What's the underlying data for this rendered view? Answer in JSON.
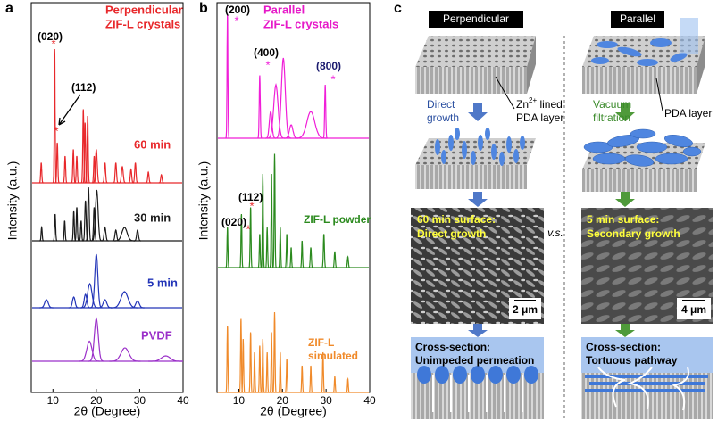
{
  "panel_labels": [
    "a",
    "b",
    "c"
  ],
  "chart_data": [
    {
      "type": "line",
      "x_label": "2θ (Degree)",
      "y_label": "Intensity (a.u.)",
      "xlim": [
        5,
        40
      ],
      "xticks": [
        10,
        20,
        30,
        40
      ],
      "title_lines": [
        "Perpendicular",
        "ZIF-L crystals"
      ],
      "title_color": "#e8282b",
      "peak_labels": [
        "(020)",
        "(112)"
      ],
      "peak_marker": "*",
      "series": [
        {
          "name": "60 min",
          "color": "#e8282b",
          "peak_x": [
            7.3,
            10.4,
            11.0,
            12.8,
            14.7,
            15.5,
            17.0,
            17.4,
            18.0,
            19.5,
            20.0,
            22,
            24.5,
            26,
            28,
            29,
            32,
            35
          ],
          "peak_heights": [
            15,
            100,
            30,
            20,
            25,
            20,
            55,
            45,
            50,
            20,
            25,
            15,
            15,
            12,
            10,
            15,
            8,
            6
          ],
          "peak_widths": [
            0.12,
            0.1,
            0.12,
            0.12,
            0.12,
            0.12,
            0.12,
            0.12,
            0.12,
            0.12,
            0.2,
            0.15,
            0.15,
            0.2,
            0.15,
            0.15,
            0.15,
            0.15
          ]
        },
        {
          "name": "30 min",
          "color": "#1a1a1a",
          "peak_x": [
            7.4,
            10.5,
            12.7,
            14.8,
            15.5,
            16.5,
            17.5,
            18.2,
            19.5,
            20.1,
            22,
            24.5,
            26.5,
            29.5
          ],
          "peak_heights": [
            10,
            20,
            15,
            22,
            25,
            15,
            30,
            40,
            25,
            38,
            10,
            8,
            10,
            8
          ],
          "peak_widths": [
            0.12,
            0.12,
            0.12,
            0.12,
            0.12,
            0.12,
            0.15,
            0.15,
            0.15,
            0.3,
            0.2,
            0.2,
            0.6,
            0.2
          ]
        },
        {
          "name": "5 min",
          "color": "#2335b8",
          "peak_x": [
            8.5,
            14.8,
            17.5,
            18.5,
            20.0,
            22,
            26.5,
            29.5
          ],
          "peak_heights": [
            6,
            8,
            10,
            18,
            40,
            6,
            12,
            5
          ],
          "peak_widths": [
            0.4,
            0.3,
            0.3,
            0.5,
            0.35,
            0.4,
            0.8,
            0.4
          ]
        },
        {
          "name": "PVDF",
          "color": "#9b30c9",
          "peak_x": [
            18.4,
            20.0,
            26.6,
            36
          ],
          "peak_heights": [
            15,
            32,
            10,
            4
          ],
          "peak_widths": [
            0.6,
            0.45,
            0.9,
            1.0
          ]
        }
      ]
    },
    {
      "type": "line",
      "x_label": "2θ (Degree)",
      "y_label": "Intensity (a.u.)",
      "xlim": [
        5,
        40
      ],
      "xticks": [
        10,
        20,
        30,
        40
      ],
      "title_lines": [
        "Parallel",
        "ZIF-L crystals"
      ],
      "title_color": "#e619c8",
      "peak_labels": [
        "(200)",
        "(400)",
        "(800)",
        "(112)",
        "(020)"
      ],
      "peak_marker": "*",
      "series": [
        {
          "name": "Parallel ZIF-L crystals",
          "color": "#f01ed8",
          "peak_x": [
            7.4,
            14.8,
            17.3,
            18.5,
            20.2,
            22,
            26.5,
            29.8
          ],
          "peak_heights": [
            93,
            47,
            20,
            40,
            60,
            10,
            20,
            40
          ],
          "peak_widths": [
            0.1,
            0.12,
            0.3,
            0.5,
            0.45,
            0.4,
            0.9,
            0.12
          ]
        },
        {
          "name": "ZIF-L powder",
          "color": "#2b8a1e",
          "peak_x": [
            7.4,
            10.6,
            12.7,
            14.8,
            15.5,
            16.5,
            17.5,
            18.2,
            19.5,
            21,
            22,
            24.5,
            26.5,
            29.5,
            32,
            35
          ],
          "peak_heights": [
            30,
            40,
            45,
            25,
            70,
            30,
            70,
            85,
            30,
            25,
            15,
            20,
            15,
            25,
            12,
            8
          ],
          "peak_widths": [
            0.1,
            0.1,
            0.1,
            0.1,
            0.1,
            0.1,
            0.1,
            0.1,
            0.1,
            0.1,
            0.1,
            0.1,
            0.12,
            0.12,
            0.12,
            0.12
          ]
        },
        {
          "name": "ZIF-L simulated",
          "color": "#f08a2a",
          "peak_x": [
            7.4,
            10.5,
            11.0,
            12.7,
            13.6,
            14.8,
            15.5,
            16.5,
            17.5,
            18.2,
            19.5,
            21,
            24.5,
            26.5,
            29.3,
            32,
            35
          ],
          "peak_heights": [
            50,
            55,
            40,
            45,
            30,
            35,
            40,
            30,
            45,
            60,
            30,
            25,
            20,
            20,
            30,
            12,
            10
          ],
          "peak_widths": [
            0.1,
            0.1,
            0.1,
            0.1,
            0.1,
            0.1,
            0.1,
            0.1,
            0.1,
            0.1,
            0.1,
            0.1,
            0.1,
            0.1,
            0.1,
            0.1,
            0.1
          ]
        }
      ]
    }
  ],
  "diagram": {
    "perpendicular": "Perpendicular",
    "parallel": "Parallel",
    "direct_growth": [
      "Direct",
      "growth"
    ],
    "vacuum_filtration": [
      "Vacuum",
      "filtration"
    ],
    "zn_label": {
      "base": "Zn",
      "sup": "2+",
      "rest": " lined",
      "line2": "PDA layer"
    },
    "pda_layer": "PDA layer",
    "vs": "v.s.",
    "sem_left": [
      "60 min surface:",
      "Direct growth"
    ],
    "sem_right": [
      "5 min surface:",
      "Secondary growth"
    ],
    "scale_left": "2 μm",
    "scale_right": "4 μm",
    "cross_left": [
      "Cross-section:",
      "Unimpeded permeation"
    ],
    "cross_right": [
      "Cross-section:",
      "Tortuous pathway"
    ]
  }
}
